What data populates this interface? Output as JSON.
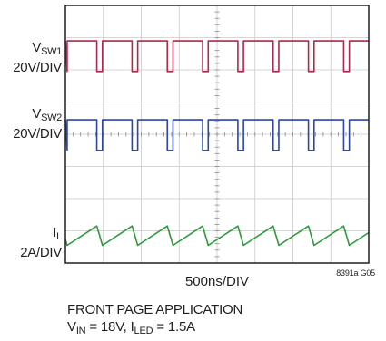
{
  "chart_data": {
    "type": "line",
    "title": "",
    "xlabel": "500ns/DIV",
    "figure_code": "8391a G05",
    "grid": true,
    "divisions": {
      "x": 8,
      "y": 8
    },
    "series": [
      {
        "name_main": "V",
        "name_sub": "SW1",
        "scale": "20V/DIV",
        "color": "#b0284a",
        "waveform": "square",
        "periods": 8.6,
        "duty": 0.84
      },
      {
        "name_main": "V",
        "name_sub": "SW2",
        "scale": "20V/DIV",
        "color": "#2b46a8",
        "waveform": "square",
        "periods": 8.6,
        "duty": 0.84
      },
      {
        "name_main": "I",
        "name_sub": "L",
        "scale": "2A/DIV",
        "color": "#2c9a3c",
        "waveform": "triangle",
        "periods": 8.6,
        "duty": 0.84
      }
    ]
  },
  "caption": {
    "line1": "FRONT PAGE APPLICATION",
    "line2_p1": "V",
    "line2_s1": "IN",
    "line2_p2": " = 18V, I",
    "line2_s2": "LED",
    "line2_p3": " = 1.5A"
  }
}
